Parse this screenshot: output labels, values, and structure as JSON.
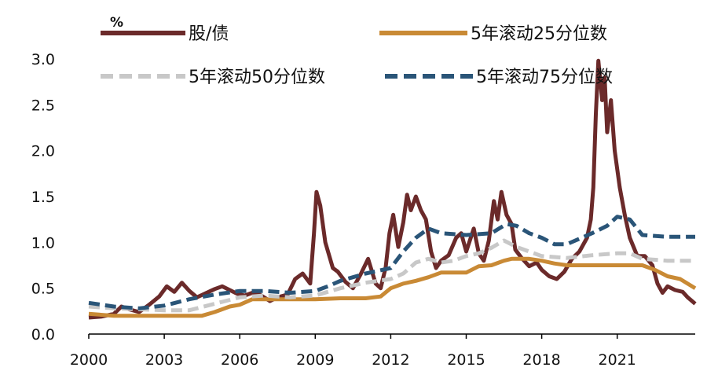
{
  "chart_data": {
    "type": "line",
    "unit_label": "%",
    "title": "",
    "xlabel": "",
    "ylabel": "",
    "xlim": [
      2000,
      2024.1
    ],
    "ylim": [
      0,
      3.0
    ],
    "x_ticks": [
      2000,
      2003,
      2006,
      2009,
      2012,
      2015,
      2018,
      2021
    ],
    "y_ticks": [
      "0.0",
      "0.5",
      "1.0",
      "1.5",
      "2.0",
      "2.5",
      "3.0"
    ],
    "grid": false,
    "legend_position": "top",
    "series": [
      {
        "name": "股/债",
        "color": "#6b2a2a",
        "style": "solid",
        "points": [
          [
            2000.0,
            0.18
          ],
          [
            2000.5,
            0.19
          ],
          [
            2001.0,
            0.22
          ],
          [
            2001.3,
            0.3
          ],
          [
            2001.6,
            0.27
          ],
          [
            2002.0,
            0.24
          ],
          [
            2002.4,
            0.32
          ],
          [
            2002.8,
            0.41
          ],
          [
            2003.1,
            0.52
          ],
          [
            2003.4,
            0.46
          ],
          [
            2003.7,
            0.56
          ],
          [
            2004.0,
            0.47
          ],
          [
            2004.3,
            0.4
          ],
          [
            2004.6,
            0.44
          ],
          [
            2005.0,
            0.49
          ],
          [
            2005.3,
            0.52
          ],
          [
            2005.6,
            0.48
          ],
          [
            2005.9,
            0.44
          ],
          [
            2006.2,
            0.42
          ],
          [
            2006.5,
            0.45
          ],
          [
            2006.8,
            0.43
          ],
          [
            2007.2,
            0.36
          ],
          [
            2007.5,
            0.4
          ],
          [
            2007.9,
            0.43
          ],
          [
            2008.2,
            0.6
          ],
          [
            2008.5,
            0.66
          ],
          [
            2008.8,
            0.55
          ],
          [
            2008.95,
            1.1
          ],
          [
            2009.05,
            1.55
          ],
          [
            2009.2,
            1.4
          ],
          [
            2009.4,
            1.0
          ],
          [
            2009.7,
            0.72
          ],
          [
            2009.9,
            0.68
          ],
          [
            2010.2,
            0.57
          ],
          [
            2010.5,
            0.5
          ],
          [
            2010.8,
            0.65
          ],
          [
            2011.1,
            0.82
          ],
          [
            2011.4,
            0.55
          ],
          [
            2011.6,
            0.5
          ],
          [
            2011.8,
            0.73
          ],
          [
            2011.95,
            1.1
          ],
          [
            2012.1,
            1.3
          ],
          [
            2012.3,
            0.95
          ],
          [
            2012.5,
            1.22
          ],
          [
            2012.65,
            1.52
          ],
          [
            2012.8,
            1.35
          ],
          [
            2013.0,
            1.5
          ],
          [
            2013.2,
            1.35
          ],
          [
            2013.4,
            1.25
          ],
          [
            2013.6,
            0.9
          ],
          [
            2013.8,
            0.72
          ],
          [
            2014.0,
            0.8
          ],
          [
            2014.3,
            0.86
          ],
          [
            2014.6,
            1.05
          ],
          [
            2014.8,
            1.1
          ],
          [
            2015.0,
            0.9
          ],
          [
            2015.3,
            1.15
          ],
          [
            2015.5,
            0.88
          ],
          [
            2015.7,
            0.8
          ],
          [
            2015.9,
            1.02
          ],
          [
            2016.1,
            1.45
          ],
          [
            2016.25,
            1.25
          ],
          [
            2016.4,
            1.55
          ],
          [
            2016.6,
            1.3
          ],
          [
            2016.8,
            1.2
          ],
          [
            2016.95,
            0.92
          ],
          [
            2017.2,
            0.83
          ],
          [
            2017.5,
            0.74
          ],
          [
            2017.8,
            0.78
          ],
          [
            2018.0,
            0.7
          ],
          [
            2018.3,
            0.63
          ],
          [
            2018.6,
            0.6
          ],
          [
            2018.9,
            0.68
          ],
          [
            2019.2,
            0.82
          ],
          [
            2019.5,
            0.9
          ],
          [
            2019.8,
            1.05
          ],
          [
            2019.95,
            1.25
          ],
          [
            2020.05,
            1.6
          ],
          [
            2020.15,
            2.4
          ],
          [
            2020.25,
            2.98
          ],
          [
            2020.4,
            2.55
          ],
          [
            2020.5,
            2.8
          ],
          [
            2020.6,
            2.2
          ],
          [
            2020.75,
            2.55
          ],
          [
            2020.9,
            2.0
          ],
          [
            2021.1,
            1.6
          ],
          [
            2021.3,
            1.3
          ],
          [
            2021.5,
            1.05
          ],
          [
            2021.8,
            0.85
          ],
          [
            2022.1,
            0.85
          ],
          [
            2022.4,
            0.75
          ],
          [
            2022.6,
            0.55
          ],
          [
            2022.8,
            0.45
          ],
          [
            2023.0,
            0.52
          ],
          [
            2023.3,
            0.48
          ],
          [
            2023.6,
            0.46
          ],
          [
            2023.8,
            0.4
          ],
          [
            2024.1,
            0.33
          ]
        ]
      },
      {
        "name": "5年滚动25分位数",
        "color": "#c98a35",
        "style": "solid",
        "points": [
          [
            2000.0,
            0.22
          ],
          [
            2001.0,
            0.2
          ],
          [
            2002.0,
            0.2
          ],
          [
            2003.0,
            0.2
          ],
          [
            2004.0,
            0.2
          ],
          [
            2004.5,
            0.2
          ],
          [
            2005.0,
            0.24
          ],
          [
            2005.6,
            0.3
          ],
          [
            2006.0,
            0.32
          ],
          [
            2006.5,
            0.38
          ],
          [
            2007.0,
            0.38
          ],
          [
            2008.0,
            0.38
          ],
          [
            2009.0,
            0.38
          ],
          [
            2010.0,
            0.39
          ],
          [
            2011.0,
            0.39
          ],
          [
            2011.6,
            0.41
          ],
          [
            2012.0,
            0.5
          ],
          [
            2012.5,
            0.55
          ],
          [
            2013.0,
            0.58
          ],
          [
            2013.5,
            0.62
          ],
          [
            2014.0,
            0.67
          ],
          [
            2015.0,
            0.67
          ],
          [
            2015.5,
            0.74
          ],
          [
            2016.0,
            0.75
          ],
          [
            2016.5,
            0.8
          ],
          [
            2016.8,
            0.82
          ],
          [
            2017.5,
            0.82
          ],
          [
            2018.0,
            0.8
          ],
          [
            2018.5,
            0.77
          ],
          [
            2019.0,
            0.75
          ],
          [
            2020.0,
            0.75
          ],
          [
            2021.0,
            0.75
          ],
          [
            2022.0,
            0.75
          ],
          [
            2022.5,
            0.7
          ],
          [
            2023.0,
            0.63
          ],
          [
            2023.5,
            0.6
          ],
          [
            2024.1,
            0.5
          ]
        ]
      },
      {
        "name": "5年滚动50分位数",
        "color": "#c8c8c8",
        "style": "dash",
        "points": [
          [
            2000.0,
            0.3
          ],
          [
            2001.0,
            0.28
          ],
          [
            2002.0,
            0.27
          ],
          [
            2003.0,
            0.26
          ],
          [
            2004.0,
            0.26
          ],
          [
            2005.0,
            0.33
          ],
          [
            2006.0,
            0.4
          ],
          [
            2007.0,
            0.42
          ],
          [
            2008.0,
            0.4
          ],
          [
            2009.0,
            0.42
          ],
          [
            2009.5,
            0.46
          ],
          [
            2010.0,
            0.5
          ],
          [
            2011.0,
            0.56
          ],
          [
            2012.0,
            0.6
          ],
          [
            2012.5,
            0.66
          ],
          [
            2013.0,
            0.78
          ],
          [
            2013.5,
            0.82
          ],
          [
            2014.0,
            0.78
          ],
          [
            2014.5,
            0.8
          ],
          [
            2015.0,
            0.85
          ],
          [
            2015.5,
            0.88
          ],
          [
            2016.0,
            0.94
          ],
          [
            2016.5,
            1.02
          ],
          [
            2017.0,
            0.95
          ],
          [
            2017.5,
            0.9
          ],
          [
            2018.0,
            0.85
          ],
          [
            2019.0,
            0.83
          ],
          [
            2020.0,
            0.86
          ],
          [
            2021.0,
            0.88
          ],
          [
            2021.5,
            0.88
          ],
          [
            2022.0,
            0.82
          ],
          [
            2023.0,
            0.8
          ],
          [
            2024.1,
            0.8
          ]
        ]
      },
      {
        "name": "5年滚动75分位数",
        "color": "#2a5578",
        "style": "dash",
        "points": [
          [
            2000.0,
            0.34
          ],
          [
            2001.0,
            0.3
          ],
          [
            2002.0,
            0.28
          ],
          [
            2003.0,
            0.31
          ],
          [
            2004.0,
            0.38
          ],
          [
            2005.0,
            0.43
          ],
          [
            2006.0,
            0.47
          ],
          [
            2007.0,
            0.47
          ],
          [
            2008.0,
            0.45
          ],
          [
            2009.0,
            0.47
          ],
          [
            2009.5,
            0.52
          ],
          [
            2010.0,
            0.58
          ],
          [
            2010.5,
            0.62
          ],
          [
            2011.0,
            0.66
          ],
          [
            2012.0,
            0.72
          ],
          [
            2012.5,
            0.9
          ],
          [
            2013.0,
            1.05
          ],
          [
            2013.5,
            1.15
          ],
          [
            2014.0,
            1.1
          ],
          [
            2015.0,
            1.08
          ],
          [
            2016.0,
            1.1
          ],
          [
            2016.6,
            1.2
          ],
          [
            2017.0,
            1.18
          ],
          [
            2017.5,
            1.1
          ],
          [
            2018.0,
            1.05
          ],
          [
            2018.5,
            0.98
          ],
          [
            2019.0,
            0.98
          ],
          [
            2020.0,
            1.1
          ],
          [
            2020.6,
            1.18
          ],
          [
            2021.0,
            1.28
          ],
          [
            2021.5,
            1.25
          ],
          [
            2022.0,
            1.08
          ],
          [
            2023.0,
            1.06
          ],
          [
            2024.1,
            1.06
          ]
        ]
      }
    ]
  }
}
